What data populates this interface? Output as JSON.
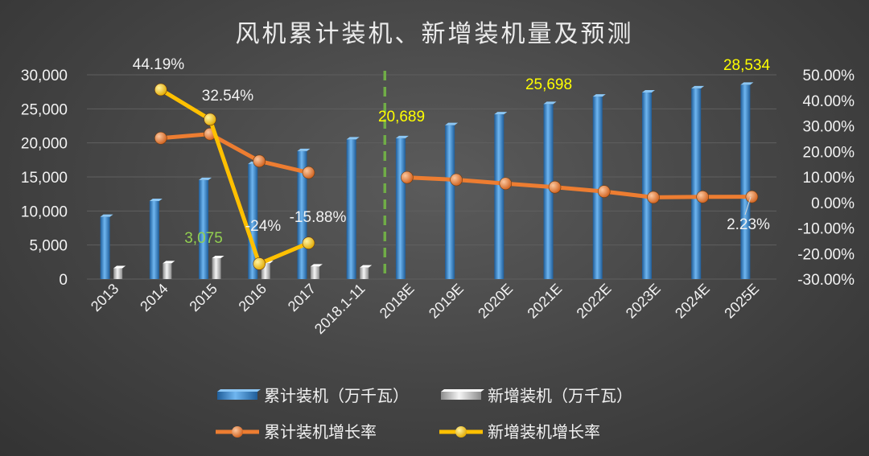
{
  "chart_data": {
    "type": "bar",
    "title": "风机累计装机、新增装机量及预测",
    "categories": [
      "2013",
      "2014",
      "2015",
      "2016",
      "2017",
      "2018.1-11",
      "2018E",
      "2019E",
      "2020E",
      "2021E",
      "2022E",
      "2023E",
      "2024E",
      "2025E"
    ],
    "y_left": {
      "ylim": [
        0,
        30000
      ],
      "ticks": [
        "0",
        "5,000",
        "10,000",
        "15,000",
        "20,000",
        "25,000",
        "30,000"
      ]
    },
    "y_right": {
      "ylim": [
        -30,
        50
      ],
      "ticks": [
        "-30.00%",
        "-20.00%",
        "-10.00%",
        "0.00%",
        "10.00%",
        "20.00%",
        "30.00%",
        "40.00%",
        "50.00%"
      ]
    },
    "series": [
      {
        "name": "累计装机（万千瓦）",
        "kind": "bar",
        "axis": "left",
        "color": "#3d8fd6",
        "values": [
          9141,
          11460,
          14535,
          16900,
          18800,
          20500,
          20689,
          22600,
          24200,
          25698,
          26800,
          27400,
          28000,
          28534
        ]
      },
      {
        "name": "新增装机（万千瓦）",
        "kind": "bar",
        "axis": "left",
        "color": "#d9d9d9",
        "values": [
          1600,
          2320,
          3075,
          2340,
          1850,
          1700,
          null,
          null,
          null,
          null,
          null,
          null,
          null,
          null
        ]
      },
      {
        "name": "累计装机增长率",
        "kind": "line",
        "axis": "right",
        "color": "#ed7d31",
        "values": [
          null,
          25.2,
          26.8,
          16.2,
          11.7,
          null,
          9.8,
          8.9,
          7.4,
          6.0,
          4.3,
          2.0,
          2.2,
          2.23
        ]
      },
      {
        "name": "新增装机增长率",
        "kind": "line",
        "axis": "right",
        "color": "#ffc000",
        "values": [
          null,
          44.19,
          32.54,
          -24,
          -15.88,
          null,
          null,
          null,
          null,
          null,
          null,
          null,
          null,
          null
        ]
      }
    ],
    "annotations": [
      {
        "text": "44.19%",
        "color": "#f2f2f2"
      },
      {
        "text": "32.54%",
        "color": "#f2f2f2"
      },
      {
        "text": "3,075",
        "color": "#92d050"
      },
      {
        "text": "-24%",
        "color": "#f2f2f2"
      },
      {
        "text": "-15.88%",
        "color": "#f2f2f2"
      },
      {
        "text": "20,689",
        "color": "#ffff00"
      },
      {
        "text": "25,698",
        "color": "#ffff00"
      },
      {
        "text": "28,534",
        "color": "#ffff00"
      },
      {
        "text": "2.23%",
        "color": "#f2f2f2"
      }
    ],
    "divider": {
      "between": [
        "2018.1-11",
        "2018E"
      ],
      "style": "dashed",
      "color": "#70ad47"
    },
    "grid": true,
    "legend_position": "bottom"
  }
}
